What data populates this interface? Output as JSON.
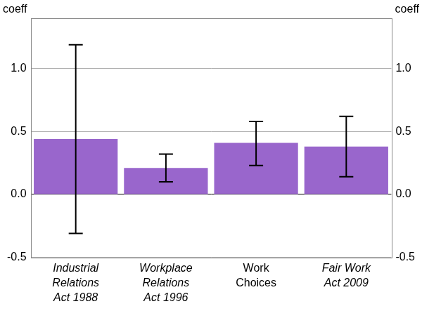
{
  "chart_data": {
    "type": "bar",
    "y_label": "coeff",
    "categories": [
      [
        "Industrial",
        "Relations",
        "Act 1988"
      ],
      [
        "Workplace",
        "Relations",
        "Act 1996"
      ],
      [
        "Work",
        "Choices"
      ],
      [
        "Fair Work",
        "Act 2009"
      ]
    ],
    "values": [
      0.44,
      0.21,
      0.41,
      0.38
    ],
    "error_low": [
      -0.31,
      0.1,
      0.23,
      0.14
    ],
    "error_high": [
      1.19,
      0.32,
      0.58,
      0.62
    ],
    "color": "#9966cc",
    "ylim": [
      -0.5,
      1.4
    ],
    "yticks": [
      -0.5,
      {
        "value": 0,
        "label": "0.0"
      },
      0.5,
      {
        "value": 1,
        "label": "1.0"
      }
    ],
    "y2lim": [
      -0.5,
      1.4
    ],
    "y2ticks": [
      -0.5,
      {
        "value": 0,
        "label": "0.0"
      },
      0.5,
      {
        "value": 1,
        "label": "1.0"
      }
    ],
    "grid": true
  }
}
